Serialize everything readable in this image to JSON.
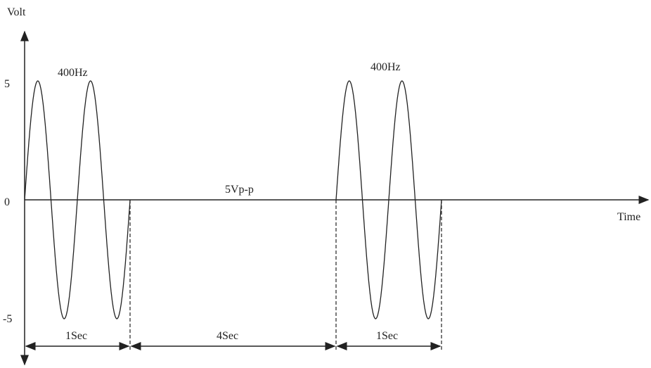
{
  "axis": {
    "y_label": "Volt",
    "x_label": "Time",
    "ticks": [
      "5",
      "0",
      "-5"
    ]
  },
  "annotations": {
    "amplitude": "5Vp-p",
    "frequency": [
      "400Hz",
      "400Hz"
    ],
    "durations": [
      "1Sec",
      "4Sec",
      "1Sec"
    ]
  }
}
